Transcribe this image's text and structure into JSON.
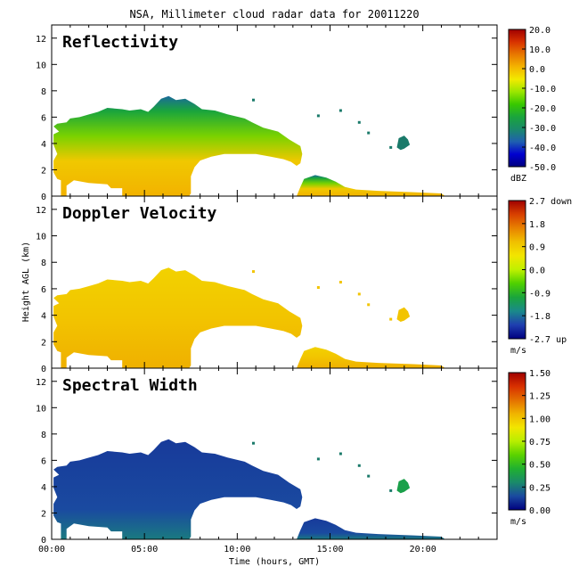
{
  "title": "NSA, Millimeter cloud radar data for 20011220",
  "xlabel": "Time (hours, GMT)",
  "ylabel": "Height AGL (km)",
  "xticks": [
    "00:00",
    "05:00",
    "10:00",
    "15:00",
    "20:00"
  ],
  "yticks": [
    "0",
    "2",
    "4",
    "6",
    "8",
    "10",
    "12"
  ],
  "chart_data": [
    {
      "type": "heatmap",
      "title": "Reflectivity",
      "colorbar": {
        "unit": "dBZ",
        "ticks": [
          "20.0",
          "10.0",
          "0.0",
          "-10.0",
          "-20.0",
          "-30.0",
          "-40.0",
          "-50.0"
        ],
        "range": [
          -50,
          20
        ]
      },
      "x_range_hours": [
        0,
        24
      ],
      "y_range_km": [
        0,
        13
      ],
      "cloud_regions": [
        {
          "feature": "main cloud top",
          "time_hours": [
            0.5,
            7.5
          ],
          "height_km": [
            0,
            7.5
          ]
        },
        {
          "feature": "main cloud (elevated)",
          "time_hours": [
            7.5,
            13.5
          ],
          "height_km": [
            2,
            7
          ]
        },
        {
          "feature": "low cloud",
          "time_hours": [
            13.2,
            21
          ],
          "height_km": [
            0,
            1.7
          ]
        },
        {
          "feature": "isolated cloud",
          "time_hours": [
            18.5,
            19.2
          ],
          "height_km": [
            3.5,
            4.5
          ]
        }
      ]
    },
    {
      "type": "heatmap",
      "title": "Doppler Velocity",
      "colorbar": {
        "unit": "m/s",
        "ticks": [
          "2.7 down",
          "1.8",
          "0.9",
          "0.0",
          "-0.9",
          "-1.8",
          "-2.7 up"
        ],
        "range": [
          -2.7,
          2.7
        ]
      },
      "x_range_hours": [
        0,
        24
      ],
      "y_range_km": [
        0,
        13
      ]
    },
    {
      "type": "heatmap",
      "title": "Spectral Width",
      "colorbar": {
        "unit": "m/s",
        "ticks": [
          "1.50",
          "1.25",
          "1.00",
          "0.75",
          "0.50",
          "0.25",
          "0.00"
        ],
        "range": [
          0,
          1.5
        ]
      },
      "x_range_hours": [
        0,
        24
      ],
      "y_range_km": [
        0,
        13
      ]
    }
  ]
}
